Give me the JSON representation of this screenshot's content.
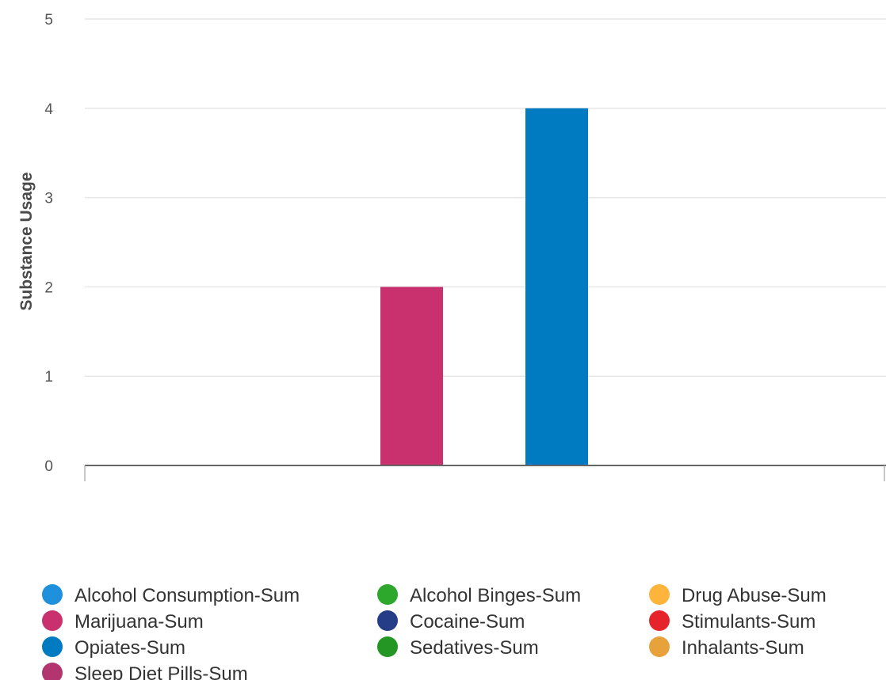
{
  "chart_data": {
    "type": "bar",
    "title": "",
    "xlabel": "",
    "ylabel": "Substance Usage",
    "ylim": [
      0,
      5
    ],
    "yticks": [
      0,
      1,
      2,
      3,
      4,
      5
    ],
    "grid": true,
    "legend_position": "bottom",
    "series": [
      {
        "name": "Alcohol Consumption-Sum",
        "color": "#1E90DC",
        "value": 0
      },
      {
        "name": "Alcohol Binges-Sum",
        "color": "#2DA82D",
        "value": 0
      },
      {
        "name": "Drug Abuse-Sum",
        "color": "#FFB43C",
        "value": 0
      },
      {
        "name": "Marijuana-Sum",
        "color": "#C8306E",
        "value": 2
      },
      {
        "name": "Cocaine-Sum",
        "color": "#253C87",
        "value": 0
      },
      {
        "name": "Stimulants-Sum",
        "color": "#E6222A",
        "value": 0
      },
      {
        "name": "Opiates-Sum",
        "color": "#007AC0",
        "value": 4
      },
      {
        "name": "Sedatives-Sum",
        "color": "#239623",
        "value": 0
      },
      {
        "name": "Inhalants-Sum",
        "color": "#E8A23C",
        "value": 0
      },
      {
        "name": "Sleep Diet Pills-Sum",
        "color": "#B3356F",
        "value": 0
      }
    ]
  }
}
